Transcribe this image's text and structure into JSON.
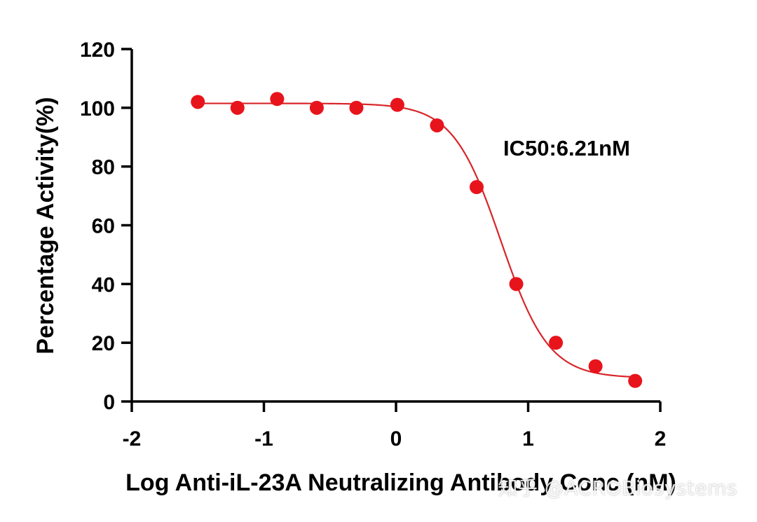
{
  "chart_data": {
    "type": "scatter",
    "xlabel": "Log Anti-iL-23A Neutralizing Antibody Conc (nM)",
    "ylabel": "Percentage Activity(%)",
    "xlim": [
      -2,
      2
    ],
    "ylim": [
      0,
      120
    ],
    "x_ticks": [
      -2,
      -1,
      0,
      1,
      2
    ],
    "y_ticks": [
      0,
      20,
      40,
      60,
      80,
      100,
      120
    ],
    "grid": false,
    "annotation": "IC50:6.21nM",
    "color": "#e8141c",
    "curve_color": "#d8262a",
    "series": [
      {
        "x": [
          -1.5,
          -1.2,
          -0.9,
          -0.6,
          -0.3,
          0.01,
          0.31,
          0.61,
          0.91,
          1.21,
          1.51,
          1.81
        ],
        "y": [
          102,
          100,
          103,
          100,
          100,
          101,
          94,
          73,
          40,
          20,
          12,
          7
        ]
      }
    ],
    "fit": {
      "model": "4PL",
      "top": 101.5,
      "bottom": 8,
      "log_ic50": 0.793,
      "hill_slope": -2.4
    }
  },
  "watermark": "知乎 @ACROBiosystems"
}
